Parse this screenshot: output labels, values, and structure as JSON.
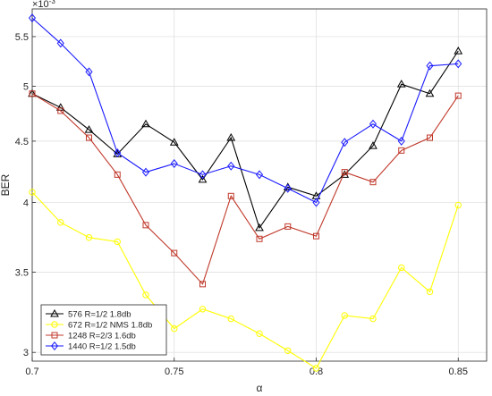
{
  "chart_data": {
    "type": "line",
    "xlabel": "α",
    "ylabel": "BER",
    "y_exponent_label": "×10",
    "y_exponent_power": "-3",
    "xlim": [
      0.7,
      0.86
    ],
    "ylim": [
      2.95,
      5.8
    ],
    "y_scale": "log",
    "grid": true,
    "legend_position": "bottom-left",
    "x_ticks": [
      0.7,
      0.75,
      0.8,
      0.85
    ],
    "x_tick_labels": [
      "0.7",
      "0.75",
      "0.8",
      "0.85"
    ],
    "y_ticks": [
      3,
      3.5,
      4,
      4.5,
      5,
      5.5
    ],
    "y_tick_labels": [
      "3",
      "3.5",
      "4",
      "4.5",
      "5",
      "5.5"
    ],
    "x": [
      0.7,
      0.71,
      0.72,
      0.73,
      0.74,
      0.75,
      0.76,
      0.77,
      0.78,
      0.79,
      0.8,
      0.81,
      0.82,
      0.83,
      0.84,
      0.85
    ],
    "series": [
      {
        "name": "576 R=1/2 1.8db",
        "color": "#000000",
        "marker": "triangle",
        "values": [
          4.93,
          4.8,
          4.6,
          4.39,
          4.65,
          4.49,
          4.18,
          4.53,
          3.81,
          4.12,
          4.05,
          4.22,
          4.46,
          5.02,
          4.93,
          5.35
        ]
      },
      {
        "name": "672 R=1/2 NMS 1.8db",
        "color": "#ffff00",
        "marker": "circle",
        "values": [
          4.08,
          3.85,
          3.74,
          3.71,
          3.35,
          3.14,
          3.26,
          3.2,
          3.11,
          3.01,
          2.91,
          3.22,
          3.2,
          3.53,
          3.37,
          3.98
        ]
      },
      {
        "name": "1248 R=2/3 1.6db",
        "color": "#c0392b",
        "marker": "square",
        "values": [
          4.93,
          4.77,
          4.53,
          4.22,
          3.83,
          3.63,
          3.42,
          4.05,
          3.73,
          3.82,
          3.75,
          4.24,
          4.16,
          4.42,
          4.53,
          4.91
        ]
      },
      {
        "name": "1440 R=1/2 1.5db",
        "color": "#1a1aff",
        "marker": "diamond",
        "values": [
          5.7,
          5.43,
          5.14,
          4.4,
          4.24,
          4.31,
          4.22,
          4.29,
          4.22,
          4.11,
          4.0,
          4.49,
          4.65,
          4.5,
          5.2,
          5.22
        ]
      }
    ]
  }
}
